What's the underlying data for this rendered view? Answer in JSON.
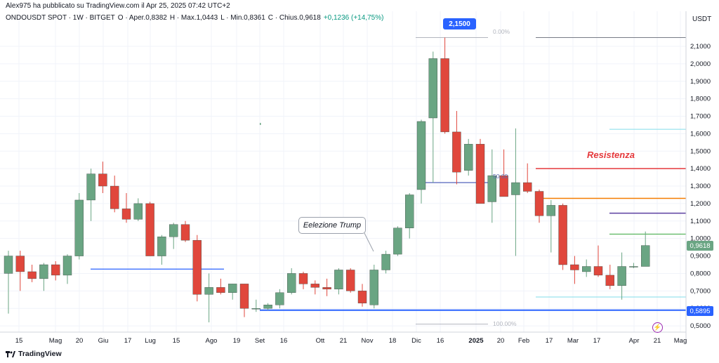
{
  "header": {
    "published": "Alex975 ha pubblicato su TradingView.com il Apr 25, 2025 07:42 UTC+2",
    "symbol": "ONDOUSDT SPOT · 1W · BITGET",
    "open": "O · Aper.0,8382",
    "high": "H · Max.1,0443",
    "low": "L · Min.0,8361",
    "close": "C · Chius.0,9618",
    "change": "+0,1236 (+14,75%)",
    "currency": "USDT"
  },
  "annotations": {
    "trump": "Eelezione Trump",
    "resistance": "Resistenza",
    "high_badge": "2,1500",
    "fib_top": "0.00%",
    "fib_bottom": "100.00%",
    "fib_mid": "50.00",
    "lightning": "⚡"
  },
  "price_tags": {
    "current": "0,9618",
    "support": "0,5895"
  },
  "footer": {
    "brand": "TradingView"
  },
  "colors": {
    "up": "#6aa583",
    "down": "#e0473c",
    "support_line": "#2962ff",
    "resistance_line": "#e5383b",
    "orange_line": "#f57c00",
    "purple_line": "#5b3fa0",
    "green_line": "#4caf50"
  },
  "chart_data": {
    "type": "candlestick",
    "timeframe": "1W",
    "ylim": [
      0.45,
      2.2
    ],
    "y_ticks": [
      "2,1000",
      "2,0000",
      "1,9000",
      "1,8000",
      "1,7000",
      "1,6000",
      "1,5000",
      "1,4000",
      "1,3000",
      "1,2000",
      "1,1000",
      "1,0000",
      "0,9000",
      "0,8000",
      "0,7000",
      "0,6000",
      "0,5000"
    ],
    "x_ticks": [
      "15",
      "Mag",
      "20",
      "Giu",
      "17",
      "Lug",
      "15",
      "Ago",
      "19",
      "Set",
      "16",
      "Ott",
      "21",
      "Nov",
      "18",
      "Dic",
      "16",
      "2025",
      "20",
      "Feb",
      "17",
      "Mar",
      "17",
      "Apr",
      "21",
      "Mag"
    ],
    "candles": [
      {
        "o": 0.8,
        "h": 0.93,
        "l": 0.57,
        "c": 0.9
      },
      {
        "o": 0.9,
        "h": 0.93,
        "l": 0.7,
        "c": 0.81
      },
      {
        "o": 0.81,
        "h": 0.85,
        "l": 0.75,
        "c": 0.77
      },
      {
        "o": 0.77,
        "h": 0.86,
        "l": 0.7,
        "c": 0.85
      },
      {
        "o": 0.85,
        "h": 0.87,
        "l": 0.76,
        "c": 0.79
      },
      {
        "o": 0.79,
        "h": 0.91,
        "l": 0.74,
        "c": 0.9
      },
      {
        "o": 0.9,
        "h": 1.26,
        "l": 0.88,
        "c": 1.22
      },
      {
        "o": 1.22,
        "h": 1.4,
        "l": 1.1,
        "c": 1.37
      },
      {
        "o": 1.37,
        "h": 1.44,
        "l": 1.26,
        "c": 1.3
      },
      {
        "o": 1.3,
        "h": 1.36,
        "l": 1.15,
        "c": 1.17
      },
      {
        "o": 1.17,
        "h": 1.26,
        "l": 1.09,
        "c": 1.11
      },
      {
        "o": 1.11,
        "h": 1.23,
        "l": 1.1,
        "c": 1.2
      },
      {
        "o": 1.2,
        "h": 1.21,
        "l": 0.9,
        "c": 0.9
      },
      {
        "o": 0.9,
        "h": 1.02,
        "l": 0.85,
        "c": 1.01
      },
      {
        "o": 1.01,
        "h": 1.09,
        "l": 0.94,
        "c": 1.08
      },
      {
        "o": 1.08,
        "h": 1.1,
        "l": 0.98,
        "c": 0.99
      },
      {
        "o": 0.99,
        "h": 1.02,
        "l": 0.64,
        "c": 0.68
      },
      {
        "o": 0.68,
        "h": 0.8,
        "l": 0.52,
        "c": 0.72
      },
      {
        "o": 0.72,
        "h": 0.77,
        "l": 0.68,
        "c": 0.69
      },
      {
        "o": 0.69,
        "h": 0.74,
        "l": 0.65,
        "c": 0.74
      },
      {
        "o": 0.74,
        "h": 0.74,
        "l": 0.55,
        "c": 0.6
      },
      {
        "o": 0.6,
        "h": 0.65,
        "l": 0.58,
        "c": 0.6
      },
      {
        "o": 0.6,
        "h": 0.63,
        "l": 0.59,
        "c": 0.62
      },
      {
        "o": 0.62,
        "h": 0.71,
        "l": 0.6,
        "c": 0.69
      },
      {
        "o": 0.69,
        "h": 0.83,
        "l": 0.68,
        "c": 0.8
      },
      {
        "o": 0.8,
        "h": 0.81,
        "l": 0.71,
        "c": 0.74
      },
      {
        "o": 0.74,
        "h": 0.76,
        "l": 0.68,
        "c": 0.72
      },
      {
        "o": 0.72,
        "h": 0.77,
        "l": 0.67,
        "c": 0.71
      },
      {
        "o": 0.71,
        "h": 0.83,
        "l": 0.68,
        "c": 0.82
      },
      {
        "o": 0.82,
        "h": 0.83,
        "l": 0.69,
        "c": 0.7
      },
      {
        "o": 0.7,
        "h": 0.74,
        "l": 0.61,
        "c": 0.63
      },
      {
        "o": 0.62,
        "h": 0.85,
        "l": 0.6,
        "c": 0.82
      },
      {
        "o": 0.82,
        "h": 0.93,
        "l": 0.8,
        "c": 0.91
      },
      {
        "o": 0.91,
        "h": 1.07,
        "l": 0.9,
        "c": 1.06
      },
      {
        "o": 1.06,
        "h": 1.26,
        "l": 1.0,
        "c": 1.25
      },
      {
        "o": 1.28,
        "h": 1.68,
        "l": 1.2,
        "c": 1.67
      },
      {
        "o": 1.69,
        "h": 2.07,
        "l": 1.32,
        "c": 2.03
      },
      {
        "o": 2.03,
        "h": 2.15,
        "l": 1.6,
        "c": 1.61
      },
      {
        "o": 1.61,
        "h": 1.73,
        "l": 1.31,
        "c": 1.38
      },
      {
        "o": 1.39,
        "h": 1.57,
        "l": 1.36,
        "c": 1.54
      },
      {
        "o": 1.54,
        "h": 1.57,
        "l": 1.2,
        "c": 1.2
      },
      {
        "o": 1.21,
        "h": 1.51,
        "l": 1.09,
        "c": 1.36
      },
      {
        "o": 1.36,
        "h": 1.51,
        "l": 1.24,
        "c": 1.24
      },
      {
        "o": 1.25,
        "h": 1.63,
        "l": 0.9,
        "c": 1.32
      },
      {
        "o": 1.32,
        "h": 1.43,
        "l": 1.26,
        "c": 1.27
      },
      {
        "o": 1.27,
        "h": 1.28,
        "l": 1.09,
        "c": 1.13
      },
      {
        "o": 1.13,
        "h": 1.22,
        "l": 0.92,
        "c": 1.19
      },
      {
        "o": 1.19,
        "h": 1.2,
        "l": 0.82,
        "c": 0.85
      },
      {
        "o": 0.85,
        "h": 0.9,
        "l": 0.74,
        "c": 0.82
      },
      {
        "o": 0.81,
        "h": 0.88,
        "l": 0.78,
        "c": 0.84
      },
      {
        "o": 0.84,
        "h": 0.96,
        "l": 0.78,
        "c": 0.79
      },
      {
        "o": 0.79,
        "h": 0.85,
        "l": 0.71,
        "c": 0.73
      },
      {
        "o": 0.73,
        "h": 0.92,
        "l": 0.65,
        "c": 0.84
      },
      {
        "o": 0.84,
        "h": 0.86,
        "l": 0.83,
        "c": 0.84
      },
      {
        "o": 0.84,
        "h": 1.04,
        "l": 0.84,
        "c": 0.96
      }
    ],
    "levels": {
      "support": 0.5895,
      "resistance": 1.4,
      "orange": 1.23,
      "purple": 1.145,
      "green": 1.025,
      "teal_top": 1.625,
      "teal_bottom": 0.665,
      "blue_left": 0.825,
      "blue_mid": 1.32
    }
  }
}
